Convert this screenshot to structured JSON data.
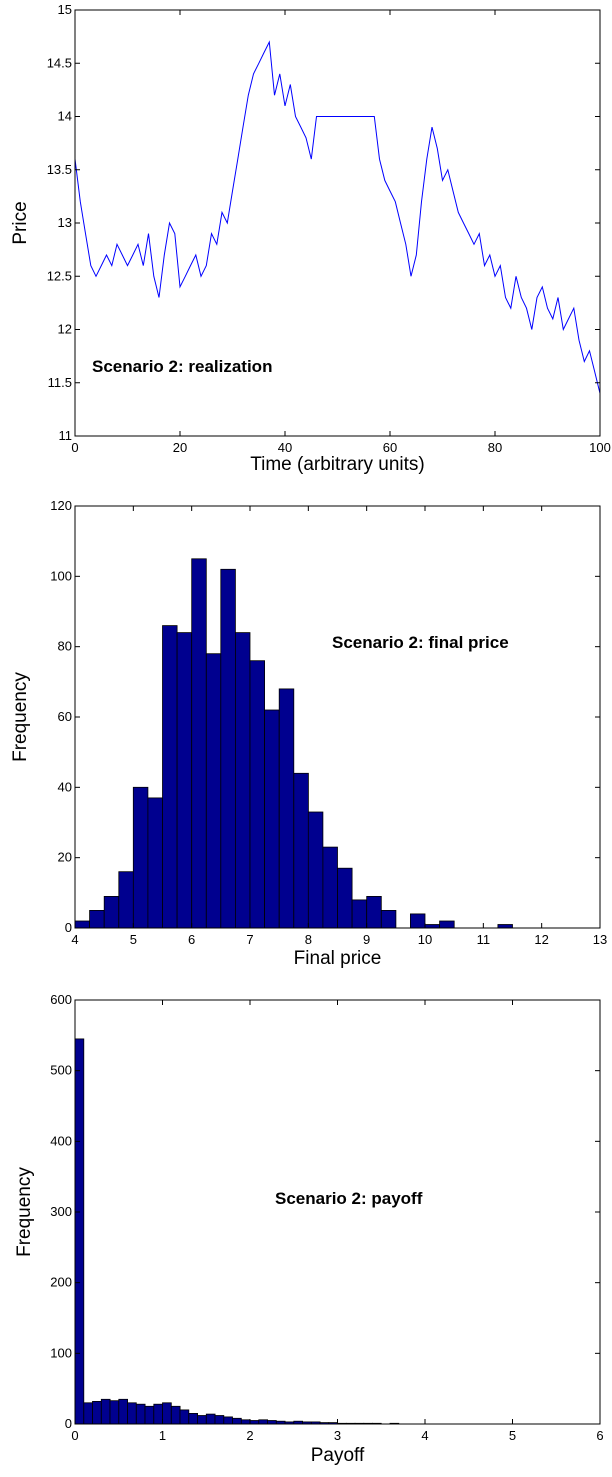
{
  "colors": {
    "line": "#0000ff",
    "bar_fill": "#00008f",
    "bar_edge": "#000000",
    "axis": "#000000"
  },
  "chart_data": [
    {
      "type": "line",
      "annotation": "Scenario 2: realization",
      "xlabel": "Time (arbitrary units)",
      "ylabel": "Price",
      "xlim": [
        0,
        100
      ],
      "ylim": [
        11,
        15
      ],
      "xticks": [
        0,
        20,
        40,
        60,
        80,
        100
      ],
      "yticks": [
        11,
        11.5,
        12,
        12.5,
        13,
        13.5,
        14,
        14.5,
        15
      ],
      "grid": false,
      "x": [
        0,
        1,
        2,
        3,
        4,
        5,
        6,
        7,
        8,
        9,
        10,
        11,
        12,
        13,
        14,
        15,
        16,
        17,
        18,
        19,
        20,
        21,
        22,
        23,
        24,
        25,
        26,
        27,
        28,
        29,
        30,
        31,
        32,
        33,
        34,
        35,
        36,
        37,
        38,
        39,
        40,
        41,
        42,
        43,
        44,
        45,
        46,
        47,
        48,
        57,
        58,
        59,
        60,
        61,
        62,
        63,
        64,
        65,
        66,
        67,
        68,
        69,
        70,
        71,
        72,
        73,
        74,
        75,
        76,
        77,
        78,
        79,
        80,
        81,
        82,
        83,
        84,
        85,
        86,
        87,
        88,
        89,
        90,
        91,
        92,
        93,
        94,
        95,
        96,
        97,
        98,
        99,
        100
      ],
      "values": [
        13.6,
        13.2,
        12.9,
        12.6,
        12.5,
        12.6,
        12.7,
        12.6,
        12.8,
        12.7,
        12.6,
        12.7,
        12.8,
        12.6,
        12.9,
        12.5,
        12.3,
        12.7,
        13.0,
        12.9,
        12.4,
        12.5,
        12.6,
        12.7,
        12.5,
        12.6,
        12.9,
        12.8,
        13.1,
        13.0,
        13.3,
        13.6,
        13.9,
        14.2,
        14.4,
        14.5,
        14.6,
        14.7,
        14.2,
        14.4,
        14.1,
        14.3,
        14.0,
        13.9,
        13.8,
        13.6,
        14.0,
        14.0,
        14.0,
        14.0,
        13.6,
        13.4,
        13.3,
        13.2,
        13.0,
        12.8,
        12.5,
        12.7,
        13.2,
        13.6,
        13.9,
        13.7,
        13.4,
        13.5,
        13.3,
        13.1,
        13.0,
        12.9,
        12.8,
        12.9,
        12.6,
        12.7,
        12.5,
        12.6,
        12.3,
        12.2,
        12.5,
        12.3,
        12.2,
        12.0,
        12.3,
        12.4,
        12.2,
        12.1,
        12.3,
        12.0,
        12.1,
        12.2,
        11.9,
        11.7,
        11.8,
        11.6,
        11.4
      ]
    },
    {
      "type": "bar",
      "annotation": "Scenario 2: final price",
      "xlabel": "Final price",
      "ylabel": "Frequency",
      "xlim": [
        4,
        13
      ],
      "ylim": [
        0,
        120
      ],
      "xticks": [
        4,
        5,
        6,
        7,
        8,
        9,
        10,
        11,
        12,
        13
      ],
      "yticks": [
        0,
        20,
        40,
        60,
        80,
        100,
        120
      ],
      "grid": false,
      "bin_start": 4.0,
      "bin_width": 0.25,
      "values": [
        2,
        5,
        9,
        16,
        40,
        37,
        86,
        84,
        105,
        78,
        102,
        84,
        76,
        62,
        68,
        44,
        33,
        23,
        17,
        8,
        9,
        5,
        0,
        4,
        1,
        2,
        0,
        0,
        0,
        1,
        0,
        0,
        0,
        0,
        0,
        0
      ]
    },
    {
      "type": "bar",
      "annotation": "Scenario 2: payoff",
      "xlabel": "Payoff",
      "ylabel": "Frequency",
      "xlim": [
        0,
        6
      ],
      "ylim": [
        0,
        600
      ],
      "xticks": [
        0,
        1,
        2,
        3,
        4,
        5,
        6
      ],
      "yticks": [
        0,
        100,
        200,
        300,
        400,
        500,
        600
      ],
      "grid": false,
      "bin_start": 0.0,
      "bin_width": 0.1,
      "values": [
        545,
        30,
        32,
        35,
        33,
        35,
        30,
        28,
        25,
        28,
        30,
        25,
        20,
        15,
        12,
        14,
        12,
        10,
        8,
        6,
        5,
        6,
        5,
        4,
        3,
        4,
        3,
        3,
        2,
        2,
        1,
        1,
        1,
        1,
        1,
        0,
        1,
        0,
        0,
        0,
        0,
        0,
        0,
        0,
        0,
        0,
        0,
        0,
        0,
        0,
        0,
        0,
        0,
        0,
        0,
        0,
        0,
        0,
        0,
        0
      ]
    }
  ]
}
